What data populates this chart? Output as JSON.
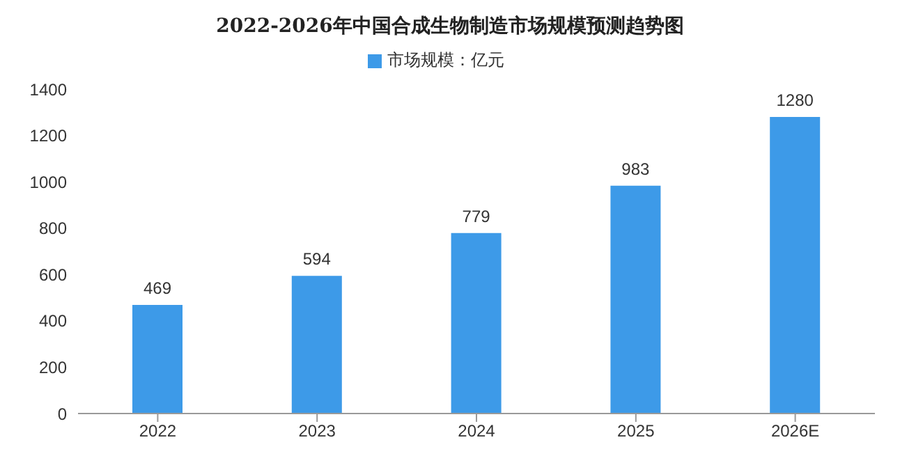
{
  "chart_data": {
    "type": "bar",
    "title": "2022-2026年中国合成生物制造市场规模预测趋势图",
    "categories": [
      "2022",
      "2023",
      "2024",
      "2025",
      "2026E"
    ],
    "series": [
      {
        "name": "市场规模：亿元",
        "color": "#3d9ae8",
        "values": [
          469,
          594,
          779,
          983,
          1280
        ]
      }
    ],
    "ylim": [
      0,
      1400
    ],
    "yticks": [
      0,
      200,
      400,
      600,
      800,
      1000,
      1200,
      1400
    ],
    "grid": false,
    "legend": "top",
    "data_labels": true
  }
}
